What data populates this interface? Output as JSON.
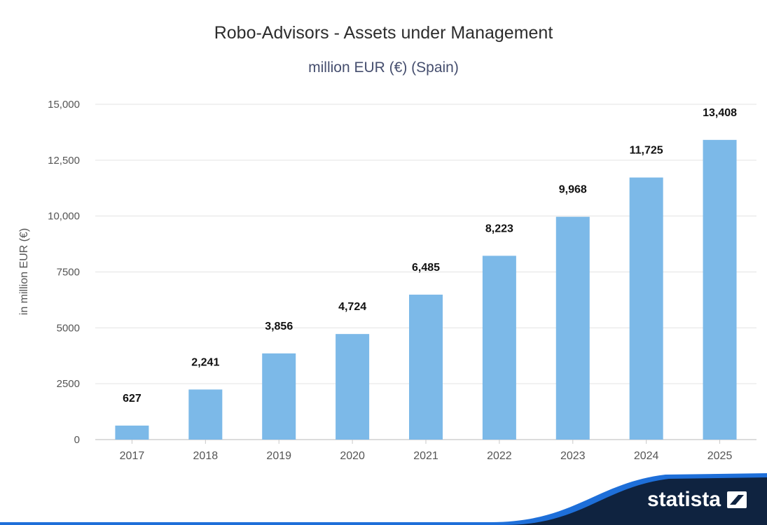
{
  "title": "Robo-Advisors - Assets under Management",
  "subtitle": "million EUR (€) (Spain)",
  "brand": {
    "name": "statista",
    "icon": "statista-logo-icon"
  },
  "colors": {
    "bar": "#7cb9e8",
    "footer_dark": "#0f2340",
    "footer_accent": "#1e6fd9"
  },
  "chart_data": {
    "type": "bar",
    "categories": [
      "2017",
      "2018",
      "2019",
      "2020",
      "2021",
      "2022",
      "2023",
      "2024",
      "2025"
    ],
    "values": [
      627,
      2241,
      3856,
      4724,
      6485,
      8223,
      9968,
      11725,
      13408
    ],
    "value_labels": [
      "627",
      "2,241",
      "3,856",
      "4,724",
      "6,485",
      "8,223",
      "9,968",
      "11,725",
      "13,408"
    ],
    "title": "Robo-Advisors - Assets under Management",
    "subtitle": "million EUR (€) (Spain)",
    "xlabel": "",
    "ylabel": "in million EUR (€)",
    "ylim": [
      0,
      15000
    ],
    "yticks": [
      0,
      2500,
      5000,
      7500,
      10000,
      12500,
      15000
    ],
    "ytick_labels": [
      "0",
      "2500",
      "5000",
      "7500",
      "10,000",
      "12,500",
      "15,000"
    ],
    "grid": true,
    "legend": "none"
  }
}
